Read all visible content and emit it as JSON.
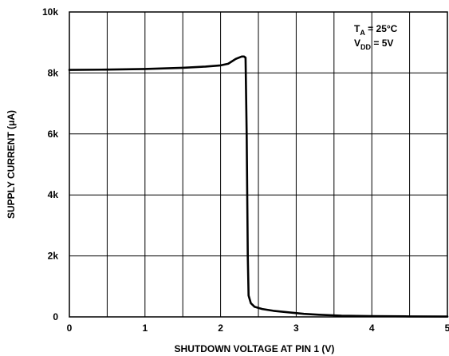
{
  "chart_data": {
    "type": "line",
    "title": "",
    "xlabel": "SHUTDOWN VOLTAGE AT PIN 1 (V)",
    "ylabel": "SUPPLY CURRENT (μA)",
    "xlim": [
      0,
      5
    ],
    "ylim": [
      0,
      10000
    ],
    "grid": true,
    "x_ticks": [
      {
        "value": 0,
        "label": "0"
      },
      {
        "value": 1,
        "label": "1"
      },
      {
        "value": 2,
        "label": "2"
      },
      {
        "value": 3,
        "label": "3"
      },
      {
        "value": 4,
        "label": "4"
      },
      {
        "value": 5,
        "label": "5"
      }
    ],
    "y_ticks": [
      {
        "value": 0,
        "label": "0"
      },
      {
        "value": 2000,
        "label": "2k"
      },
      {
        "value": 4000,
        "label": "4k"
      },
      {
        "value": 6000,
        "label": "6k"
      },
      {
        "value": 8000,
        "label": "8k"
      },
      {
        "value": 10000,
        "label": "10k"
      }
    ],
    "x_grid_step": 0.5,
    "y_grid_step": 2000,
    "annotation": {
      "line1": {
        "main": "T",
        "sub": "A",
        "rest": " = 25°C"
      },
      "line2": {
        "main": "V",
        "sub": "DD",
        "rest": " = 5V"
      }
    },
    "series": [
      {
        "color": "#000000",
        "x": [
          0,
          0.5,
          1.0,
          1.5,
          1.8,
          2.0,
          2.1,
          2.15,
          2.2,
          2.25,
          2.28,
          2.31,
          2.33,
          2.345,
          2.36,
          2.37,
          2.4,
          2.45,
          2.55,
          2.7,
          2.9,
          3.1,
          3.3,
          3.6,
          4.0,
          4.5,
          5.0
        ],
        "y": [
          8100,
          8110,
          8130,
          8170,
          8210,
          8250,
          8300,
          8380,
          8460,
          8510,
          8540,
          8540,
          8500,
          6000,
          2000,
          700,
          450,
          330,
          260,
          200,
          150,
          100,
          70,
          40,
          25,
          15,
          10
        ]
      }
    ]
  }
}
